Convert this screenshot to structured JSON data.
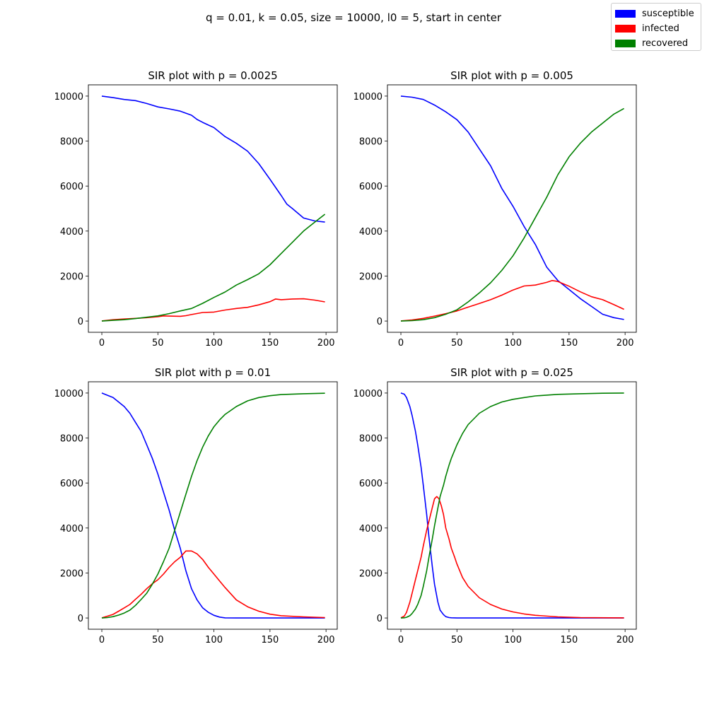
{
  "figure": {
    "suptitle": "q = 0.01, k = 0.05, size = 10000, l0 = 5, start in center"
  },
  "legend": {
    "items": [
      {
        "label": "susceptible",
        "color": "#0000ff"
      },
      {
        "label": "infected",
        "color": "#ff0000"
      },
      {
        "label": "recovered",
        "color": "#008000"
      }
    ]
  },
  "chart_data": [
    {
      "type": "line",
      "title": "SIR plot with p = 0.0025",
      "xlabel": "",
      "ylabel": "",
      "xlim": [
        -12,
        210
      ],
      "ylim": [
        -500,
        10500
      ],
      "xticks": [
        0,
        50,
        100,
        150,
        200
      ],
      "yticks": [
        0,
        2000,
        4000,
        6000,
        8000,
        10000
      ],
      "series": [
        {
          "name": "susceptible",
          "color": "#0000ff",
          "x": [
            0,
            10,
            20,
            30,
            40,
            50,
            60,
            70,
            80,
            85,
            90,
            100,
            110,
            120,
            130,
            140,
            150,
            160,
            165,
            170,
            180,
            190,
            199
          ],
          "y": [
            10000,
            9930,
            9850,
            9800,
            9670,
            9520,
            9430,
            9330,
            9150,
            8960,
            8830,
            8600,
            8200,
            7900,
            7550,
            7000,
            6300,
            5580,
            5200,
            5000,
            4580,
            4450,
            4400
          ]
        },
        {
          "name": "infected",
          "color": "#ff0000",
          "x": [
            0,
            10,
            20,
            30,
            40,
            50,
            55,
            60,
            70,
            75,
            80,
            90,
            100,
            110,
            120,
            130,
            140,
            150,
            155,
            160,
            170,
            180,
            190,
            199
          ],
          "y": [
            5,
            60,
            90,
            120,
            150,
            190,
            230,
            220,
            210,
            240,
            290,
            380,
            400,
            490,
            560,
            610,
            720,
            860,
            980,
            950,
            980,
            990,
            930,
            850
          ]
        },
        {
          "name": "recovered",
          "color": "#008000",
          "x": [
            0,
            10,
            20,
            30,
            40,
            50,
            60,
            70,
            80,
            90,
            100,
            110,
            120,
            130,
            140,
            150,
            160,
            170,
            180,
            190,
            199
          ],
          "y": [
            0,
            30,
            60,
            110,
            170,
            230,
            330,
            450,
            560,
            790,
            1050,
            1290,
            1600,
            1840,
            2100,
            2500,
            3000,
            3500,
            4000,
            4400,
            4750
          ]
        }
      ]
    },
    {
      "type": "line",
      "title": "SIR plot with p = 0.005",
      "xlabel": "",
      "ylabel": "",
      "xlim": [
        -12,
        210
      ],
      "ylim": [
        -500,
        10500
      ],
      "xticks": [
        0,
        50,
        100,
        150,
        200
      ],
      "yticks": [
        0,
        2000,
        4000,
        6000,
        8000,
        10000
      ],
      "series": [
        {
          "name": "susceptible",
          "color": "#0000ff",
          "x": [
            0,
            10,
            20,
            30,
            40,
            50,
            60,
            70,
            80,
            90,
            100,
            110,
            120,
            130,
            140,
            150,
            160,
            170,
            180,
            190,
            199
          ],
          "y": [
            10000,
            9950,
            9850,
            9600,
            9300,
            8950,
            8400,
            7650,
            6900,
            5900,
            5100,
            4200,
            3400,
            2400,
            1800,
            1400,
            1000,
            650,
            300,
            150,
            70
          ]
        },
        {
          "name": "infected",
          "color": "#ff0000",
          "x": [
            0,
            10,
            20,
            30,
            40,
            50,
            60,
            70,
            80,
            90,
            100,
            110,
            120,
            130,
            135,
            140,
            150,
            160,
            170,
            180,
            190,
            199
          ],
          "y": [
            5,
            50,
            120,
            220,
            330,
            450,
            620,
            780,
            950,
            1150,
            1380,
            1560,
            1600,
            1720,
            1800,
            1760,
            1550,
            1300,
            1080,
            950,
            730,
            520
          ]
        },
        {
          "name": "recovered",
          "color": "#008000",
          "x": [
            0,
            10,
            20,
            30,
            40,
            50,
            60,
            70,
            80,
            90,
            100,
            110,
            120,
            130,
            140,
            150,
            160,
            170,
            180,
            190,
            199
          ],
          "y": [
            0,
            20,
            60,
            150,
            300,
            500,
            850,
            1250,
            1700,
            2250,
            2900,
            3700,
            4600,
            5500,
            6500,
            7300,
            7900,
            8400,
            8800,
            9200,
            9450
          ]
        }
      ]
    },
    {
      "type": "line",
      "title": "SIR plot with p = 0.01",
      "xlabel": "",
      "ylabel": "",
      "xlim": [
        -12,
        210
      ],
      "ylim": [
        -500,
        10500
      ],
      "xticks": [
        0,
        50,
        100,
        150,
        200
      ],
      "yticks": [
        0,
        2000,
        4000,
        6000,
        8000,
        10000
      ],
      "series": [
        {
          "name": "susceptible",
          "color": "#0000ff",
          "x": [
            0,
            5,
            10,
            15,
            20,
            25,
            30,
            35,
            40,
            45,
            50,
            55,
            60,
            65,
            70,
            75,
            80,
            85,
            90,
            95,
            100,
            105,
            110,
            120,
            140,
            160,
            199
          ],
          "y": [
            10000,
            9900,
            9800,
            9600,
            9400,
            9100,
            8700,
            8300,
            7700,
            7100,
            6400,
            5600,
            4800,
            3900,
            3100,
            2100,
            1300,
            800,
            450,
            250,
            120,
            40,
            5,
            0,
            0,
            0,
            0
          ]
        },
        {
          "name": "infected",
          "color": "#ff0000",
          "x": [
            0,
            5,
            10,
            15,
            20,
            25,
            30,
            35,
            40,
            45,
            50,
            55,
            60,
            65,
            70,
            75,
            80,
            85,
            90,
            95,
            100,
            105,
            110,
            120,
            130,
            140,
            150,
            160,
            180,
            199
          ],
          "y": [
            5,
            80,
            160,
            300,
            450,
            600,
            830,
            1050,
            1300,
            1520,
            1700,
            1950,
            2250,
            2500,
            2700,
            2980,
            2980,
            2850,
            2600,
            2250,
            1950,
            1650,
            1350,
            800,
            500,
            300,
            170,
            100,
            50,
            20
          ]
        },
        {
          "name": "recovered",
          "color": "#008000",
          "x": [
            0,
            5,
            10,
            15,
            20,
            25,
            30,
            35,
            40,
            45,
            50,
            55,
            60,
            65,
            70,
            75,
            80,
            85,
            90,
            95,
            100,
            105,
            110,
            120,
            130,
            140,
            150,
            160,
            180,
            199
          ],
          "y": [
            0,
            20,
            60,
            130,
            220,
            350,
            560,
            820,
            1100,
            1500,
            1950,
            2500,
            3100,
            3900,
            4700,
            5500,
            6300,
            7000,
            7600,
            8100,
            8500,
            8800,
            9050,
            9400,
            9650,
            9800,
            9880,
            9930,
            9970,
            9990
          ]
        }
      ]
    },
    {
      "type": "line",
      "title": "SIR plot with p = 0.025",
      "xlabel": "",
      "ylabel": "",
      "xlim": [
        -12,
        210
      ],
      "ylim": [
        -500,
        10500
      ],
      "xticks": [
        0,
        50,
        100,
        150,
        200
      ],
      "yticks": [
        0,
        2000,
        4000,
        6000,
        8000,
        10000
      ],
      "series": [
        {
          "name": "susceptible",
          "color": "#0000ff",
          "x": [
            0,
            3,
            5,
            8,
            10,
            13,
            15,
            18,
            20,
            23,
            25,
            28,
            30,
            33,
            35,
            38,
            40,
            43,
            45,
            50,
            60,
            80,
            100,
            150,
            199
          ],
          "y": [
            10000,
            9950,
            9800,
            9400,
            9000,
            8300,
            7700,
            6700,
            5900,
            4600,
            3600,
            2300,
            1500,
            700,
            350,
            150,
            60,
            20,
            10,
            0,
            0,
            0,
            0,
            0,
            0
          ]
        },
        {
          "name": "infected",
          "color": "#ff0000",
          "x": [
            0,
            3,
            5,
            8,
            10,
            13,
            15,
            18,
            20,
            23,
            25,
            28,
            30,
            32,
            34,
            36,
            38,
            40,
            43,
            45,
            48,
            50,
            55,
            60,
            70,
            80,
            90,
            100,
            110,
            120,
            140,
            160,
            199
          ],
          "y": [
            5,
            80,
            250,
            700,
            1100,
            1700,
            2100,
            2700,
            3200,
            3900,
            4300,
            4900,
            5300,
            5400,
            5300,
            5000,
            4600,
            4000,
            3500,
            3100,
            2700,
            2400,
            1800,
            1400,
            900,
            600,
            400,
            270,
            180,
            120,
            50,
            20,
            5
          ]
        },
        {
          "name": "recovered",
          "color": "#008000",
          "x": [
            0,
            3,
            5,
            8,
            10,
            13,
            15,
            18,
            20,
            23,
            25,
            28,
            30,
            33,
            35,
            38,
            40,
            43,
            45,
            50,
            55,
            60,
            70,
            80,
            90,
            100,
            110,
            120,
            140,
            160,
            180,
            199
          ],
          "y": [
            0,
            10,
            30,
            100,
            200,
            400,
            600,
            1000,
            1400,
            2100,
            2700,
            3500,
            4100,
            4900,
            5400,
            5900,
            6300,
            6800,
            7100,
            7700,
            8200,
            8600,
            9100,
            9400,
            9600,
            9720,
            9800,
            9870,
            9940,
            9970,
            9990,
            10000
          ]
        }
      ]
    }
  ]
}
